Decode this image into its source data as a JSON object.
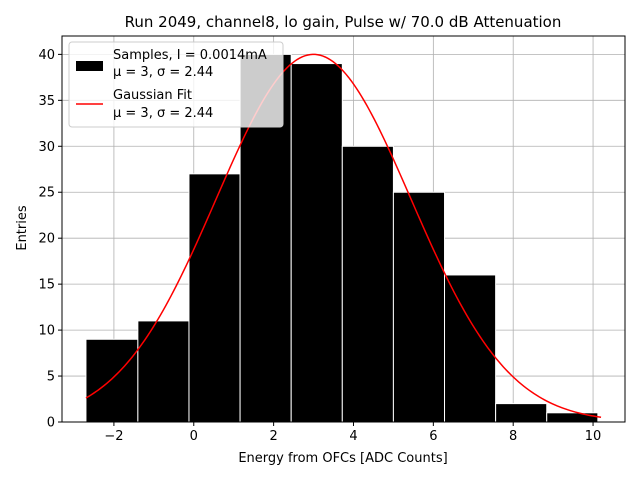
{
  "chart_data": {
    "type": "bar",
    "title": "Run 2049, channel8, lo gain, Pulse w/ 70.0 dB Attenuation",
    "xlabel": "Energy from OFCs [ADC Counts]",
    "ylabel": "Entries",
    "xlim": [
      -3.3,
      10.8
    ],
    "ylim": [
      0,
      42
    ],
    "grid": true,
    "xticks": [
      -2,
      0,
      2,
      4,
      6,
      8,
      10
    ],
    "xtick_labels": [
      "−2",
      "0",
      "2",
      "4",
      "6",
      "8",
      "10"
    ],
    "yticks": [
      0,
      5,
      10,
      15,
      20,
      25,
      30,
      35,
      40
    ],
    "bin_edges": [
      -2.7,
      -1.4,
      -0.12,
      1.16,
      2.44,
      3.72,
      5.0,
      6.28,
      7.56,
      8.84,
      10.12
    ],
    "values": [
      9,
      11,
      27,
      40,
      39,
      30,
      25,
      16,
      2,
      1
    ],
    "bar_color": "#000000",
    "bar_edge_color": "#ffffff",
    "fit": {
      "type": "gaussian",
      "mu": 3,
      "sigma": 2.44,
      "amplitude": 40,
      "x_range": [
        -2.7,
        10.2
      ],
      "color": "#ff0000"
    },
    "legend": {
      "placement": "top-left",
      "entries": [
        {
          "line1": "Samples, I = 0.0014mA",
          "line2": "μ = 3, σ = 2.44",
          "marker": "patch",
          "color": "#000000"
        },
        {
          "line1": "Gaussian Fit",
          "line2": "μ = 3, σ = 2.44",
          "marker": "line",
          "color": "#ff0000"
        }
      ]
    }
  }
}
